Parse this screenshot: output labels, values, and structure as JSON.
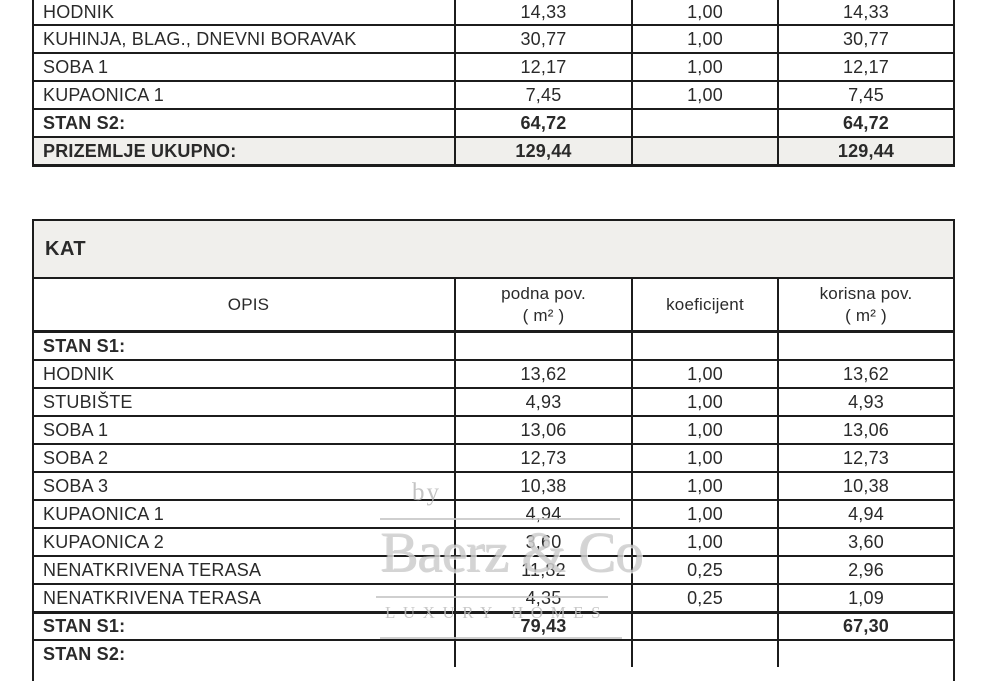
{
  "colors": {
    "border": "#1c1c1c",
    "text": "#2a2a2a",
    "shaded_bg": "#f0efec",
    "watermark_gray": "#c7c7c7"
  },
  "ground_floor_table": {
    "rows": [
      {
        "label": "HODNIK",
        "podna": "14,33",
        "koef": "1,00",
        "korisna": "14,33",
        "bold": false,
        "shaded": false,
        "thick": false
      },
      {
        "label": "KUHINJA, BLAG., DNEVNI BORAVAK",
        "podna": "30,77",
        "koef": "1,00",
        "korisna": "30,77",
        "bold": false,
        "shaded": false,
        "thick": false
      },
      {
        "label": "SOBA 1",
        "podna": "12,17",
        "koef": "1,00",
        "korisna": "12,17",
        "bold": false,
        "shaded": false,
        "thick": false
      },
      {
        "label": "KUPAONICA 1",
        "podna": "7,45",
        "koef": "1,00",
        "korisna": "7,45",
        "bold": false,
        "shaded": false,
        "thick": false
      },
      {
        "label": "STAN S2:",
        "podna": "64,72",
        "koef": "",
        "korisna": "64,72",
        "bold": true,
        "shaded": false,
        "thick": false
      },
      {
        "label": "PRIZEMLJE UKUPNO:",
        "podna": "129,44",
        "koef": "",
        "korisna": "129,44",
        "bold": true,
        "shaded": true,
        "thick": false
      }
    ]
  },
  "kat_table": {
    "section_title": "KAT",
    "header": {
      "opis": "OPIS",
      "podna_line1": "podna pov.",
      "podna_line2": "( m² )",
      "koeficijent": "koeficijent",
      "korisna_line1": "korisna pov.",
      "korisna_line2": "( m² )"
    },
    "rows": [
      {
        "label": "STAN S1:",
        "podna": "",
        "koef": "",
        "korisna": "",
        "bold": true,
        "shaded": false,
        "thick": false
      },
      {
        "label": "HODNIK",
        "podna": "13,62",
        "koef": "1,00",
        "korisna": "13,62",
        "bold": false,
        "shaded": false,
        "thick": false
      },
      {
        "label": "STUBIŠTE",
        "podna": "4,93",
        "koef": "1,00",
        "korisna": "4,93",
        "bold": false,
        "shaded": false,
        "thick": false
      },
      {
        "label": "SOBA 1",
        "podna": "13,06",
        "koef": "1,00",
        "korisna": "13,06",
        "bold": false,
        "shaded": false,
        "thick": false
      },
      {
        "label": "SOBA 2",
        "podna": "12,73",
        "koef": "1,00",
        "korisna": "12,73",
        "bold": false,
        "shaded": false,
        "thick": false
      },
      {
        "label": "SOBA 3",
        "podna": "10,38",
        "koef": "1,00",
        "korisna": "10,38",
        "bold": false,
        "shaded": false,
        "thick": false
      },
      {
        "label": "KUPAONICA 1",
        "podna": "4,94",
        "koef": "1,00",
        "korisna": "4,94",
        "bold": false,
        "shaded": false,
        "thick": false
      },
      {
        "label": "KUPAONICA 2",
        "podna": "3,60",
        "koef": "1,00",
        "korisna": "3,60",
        "bold": false,
        "shaded": false,
        "thick": false
      },
      {
        "label": "NENATKRIVENA TERASA",
        "podna": "11,82",
        "koef": "0,25",
        "korisna": "2,96",
        "bold": false,
        "shaded": false,
        "thick": false
      },
      {
        "label": "NENATKRIVENA TERASA",
        "podna": "4,35",
        "koef": "0,25",
        "korisna": "1,09",
        "bold": false,
        "shaded": false,
        "thick": false
      },
      {
        "label": "STAN S1:",
        "podna": "79,43",
        "koef": "",
        "korisna": "67,30",
        "bold": true,
        "shaded": false,
        "thick": true
      },
      {
        "label": "STAN S2:",
        "podna": "",
        "koef": "",
        "korisna": "",
        "bold": true,
        "shaded": false,
        "thick": false
      }
    ]
  },
  "watermark": {
    "by": "by",
    "name": "Baerz & Co",
    "tagline": "LUXURY HOMES"
  }
}
